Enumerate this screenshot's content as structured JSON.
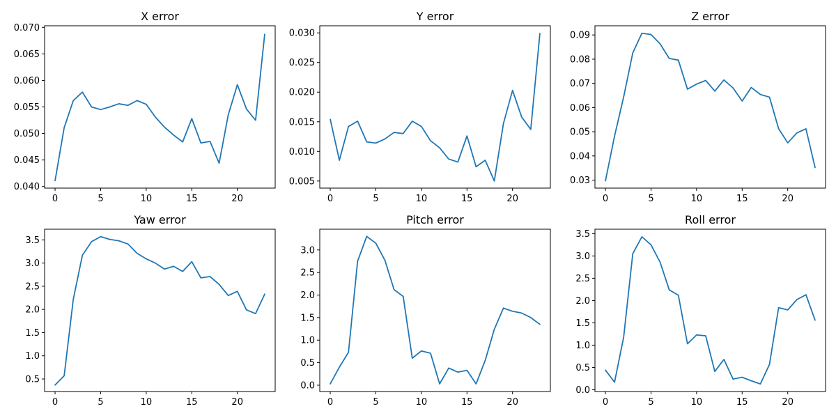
{
  "style": {
    "line_color": "#1f77b4",
    "background": "#ffffff"
  },
  "chart_data": [
    {
      "type": "line",
      "title": "X error",
      "xlabel": "",
      "ylabel": "",
      "xlim": [
        -1.15,
        24.15
      ],
      "ylim": [
        0.0397,
        0.0703
      ],
      "xticks": [
        0,
        5,
        10,
        15,
        20
      ],
      "yticks": [
        0.04,
        0.045,
        0.05,
        0.055,
        0.06,
        0.065,
        0.07
      ],
      "ytick_labels": [
        "0.040",
        "0.045",
        "0.050",
        "0.055",
        "0.060",
        "0.065",
        "0.070"
      ],
      "grid": false,
      "x": [
        0,
        1,
        2,
        3,
        4,
        5,
        6,
        7,
        8,
        9,
        10,
        11,
        12,
        13,
        14,
        15,
        16,
        17,
        18,
        19,
        20,
        21,
        22,
        23
      ],
      "values": [
        0.0411,
        0.0511,
        0.0562,
        0.0578,
        0.055,
        0.0545,
        0.055,
        0.0556,
        0.0553,
        0.0562,
        0.0555,
        0.0531,
        0.0512,
        0.0497,
        0.0484,
        0.0528,
        0.0482,
        0.0485,
        0.0444,
        0.0535,
        0.0592,
        0.0546,
        0.0525,
        0.0687
      ]
    },
    {
      "type": "line",
      "title": "Y error",
      "xlabel": "",
      "ylabel": "",
      "xlim": [
        -1.15,
        24.15
      ],
      "ylim": [
        0.0038,
        0.0312
      ],
      "xticks": [
        0,
        5,
        10,
        15,
        20
      ],
      "yticks": [
        0.005,
        0.01,
        0.015,
        0.02,
        0.025,
        0.03
      ],
      "ytick_labels": [
        "0.005",
        "0.010",
        "0.015",
        "0.020",
        "0.025",
        "0.030"
      ],
      "grid": false,
      "x": [
        0,
        1,
        2,
        3,
        4,
        5,
        6,
        7,
        8,
        9,
        10,
        11,
        12,
        13,
        14,
        15,
        16,
        17,
        18,
        19,
        20,
        21,
        22,
        23
      ],
      "values": [
        0.0154,
        0.0085,
        0.0142,
        0.0151,
        0.0116,
        0.0114,
        0.0121,
        0.0132,
        0.013,
        0.0151,
        0.0142,
        0.0118,
        0.0106,
        0.0087,
        0.0082,
        0.0126,
        0.0074,
        0.0085,
        0.005,
        0.0147,
        0.0203,
        0.0158,
        0.0137,
        0.0299
      ]
    },
    {
      "type": "line",
      "title": "Z error",
      "xlabel": "",
      "ylabel": "",
      "xlim": [
        -1.15,
        24.15
      ],
      "ylim": [
        0.0267,
        0.0938
      ],
      "xticks": [
        0,
        5,
        10,
        15,
        20
      ],
      "yticks": [
        0.03,
        0.04,
        0.05,
        0.06,
        0.07,
        0.08,
        0.09
      ],
      "ytick_labels": [
        "0.03",
        "0.04",
        "0.05",
        "0.06",
        "0.07",
        "0.08",
        "0.09"
      ],
      "grid": false,
      "x": [
        0,
        1,
        2,
        3,
        4,
        5,
        6,
        7,
        8,
        9,
        10,
        11,
        12,
        13,
        14,
        15,
        16,
        17,
        18,
        19,
        20,
        21,
        22,
        23
      ],
      "values": [
        0.0297,
        0.0482,
        0.0644,
        0.0826,
        0.0907,
        0.0902,
        0.0863,
        0.0803,
        0.0796,
        0.0676,
        0.0697,
        0.0712,
        0.0668,
        0.0714,
        0.0681,
        0.0627,
        0.0683,
        0.0654,
        0.0643,
        0.0513,
        0.0454,
        0.0495,
        0.0512,
        0.0352
      ]
    },
    {
      "type": "line",
      "title": "Yaw error",
      "xlabel": "",
      "ylabel": "",
      "xlim": [
        -1.15,
        24.15
      ],
      "ylim": [
        0.23,
        3.73
      ],
      "xticks": [
        0,
        5,
        10,
        15,
        20
      ],
      "yticks": [
        0.5,
        1.0,
        1.5,
        2.0,
        2.5,
        3.0,
        3.5
      ],
      "ytick_labels": [
        "0.5",
        "1.0",
        "1.5",
        "2.0",
        "2.5",
        "3.0",
        "3.5"
      ],
      "grid": false,
      "x": [
        0,
        1,
        2,
        3,
        4,
        5,
        6,
        7,
        8,
        9,
        10,
        11,
        12,
        13,
        14,
        15,
        16,
        17,
        18,
        19,
        20,
        21,
        22,
        23
      ],
      "values": [
        0.37,
        0.57,
        2.22,
        3.17,
        3.46,
        3.57,
        3.51,
        3.48,
        3.41,
        3.21,
        3.09,
        3.0,
        2.87,
        2.93,
        2.82,
        3.03,
        2.68,
        2.71,
        2.54,
        2.3,
        2.39,
        1.99,
        1.91,
        2.33
      ]
    },
    {
      "type": "line",
      "title": "Pitch error",
      "xlabel": "",
      "ylabel": "",
      "xlim": [
        -1.15,
        24.15
      ],
      "ylim": [
        -0.14,
        3.46
      ],
      "xticks": [
        0,
        5,
        10,
        15,
        20
      ],
      "yticks": [
        0.0,
        0.5,
        1.0,
        1.5,
        2.0,
        2.5,
        3.0
      ],
      "ytick_labels": [
        "0.0",
        "0.5",
        "1.0",
        "1.5",
        "2.0",
        "2.5",
        "3.0"
      ],
      "grid": false,
      "x": [
        0,
        1,
        2,
        3,
        4,
        5,
        6,
        7,
        8,
        9,
        10,
        11,
        12,
        13,
        14,
        15,
        16,
        17,
        18,
        19,
        20,
        21,
        22,
        23
      ],
      "values": [
        0.03,
        0.4,
        0.73,
        2.75,
        3.3,
        3.15,
        2.77,
        2.12,
        1.97,
        0.6,
        0.76,
        0.71,
        0.03,
        0.38,
        0.29,
        0.33,
        0.03,
        0.55,
        1.24,
        1.71,
        1.64,
        1.6,
        1.5,
        1.35
      ]
    },
    {
      "type": "line",
      "title": "Roll error",
      "xlabel": "",
      "ylabel": "",
      "xlim": [
        -1.15,
        24.15
      ],
      "ylim": [
        -0.04,
        3.6
      ],
      "xticks": [
        0,
        5,
        10,
        15,
        20
      ],
      "yticks": [
        0.0,
        0.5,
        1.0,
        1.5,
        2.0,
        2.5,
        3.0,
        3.5
      ],
      "ytick_labels": [
        "0.0",
        "0.5",
        "1.0",
        "1.5",
        "2.0",
        "2.5",
        "3.0",
        "3.5"
      ],
      "grid": false,
      "x": [
        0,
        1,
        2,
        3,
        4,
        5,
        6,
        7,
        8,
        9,
        10,
        11,
        12,
        13,
        14,
        15,
        16,
        17,
        18,
        19,
        20,
        21,
        22,
        23
      ],
      "values": [
        0.44,
        0.17,
        1.18,
        3.05,
        3.43,
        3.25,
        2.86,
        2.24,
        2.12,
        1.03,
        1.23,
        1.21,
        0.41,
        0.68,
        0.24,
        0.28,
        0.2,
        0.13,
        0.57,
        1.84,
        1.79,
        2.02,
        2.13,
        1.56
      ]
    }
  ]
}
